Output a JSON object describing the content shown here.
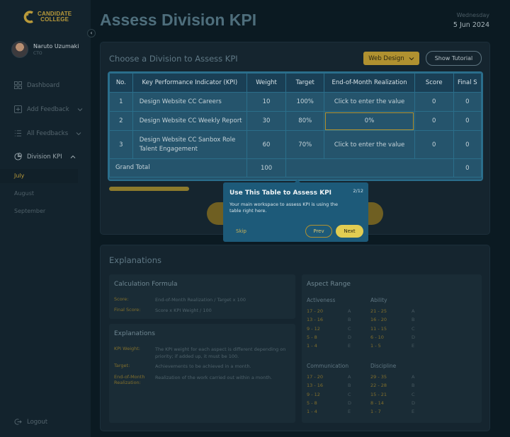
{
  "brand": {
    "line1": "CANDIDATE",
    "line2": "COLLEGE"
  },
  "user": {
    "name": "Naruto Uzumaki",
    "role": "CTO"
  },
  "sidebar": {
    "items": [
      {
        "label": "Dashboard"
      },
      {
        "label": "Add Feedback"
      },
      {
        "label": "All Feedbacks"
      },
      {
        "label": "Division KPI"
      }
    ],
    "sub_items": [
      {
        "label": "July"
      },
      {
        "label": "August"
      },
      {
        "label": "September"
      }
    ],
    "logout": "Logout"
  },
  "header": {
    "title": "Assess Division KPI",
    "weekday": "Wednesday",
    "date": "5 Jun 2024"
  },
  "assess": {
    "title": "Choose a Division to Assess KPI",
    "division": "Web Design",
    "tutorial_label": "Show Tutorial"
  },
  "table": {
    "headers": [
      "No.",
      "Key Performance Indicator (KPI)",
      "Weight",
      "Target",
      "End-of-Month Realization",
      "Score",
      "Final S"
    ],
    "rows": [
      {
        "no": "1",
        "kpi": "Design Website CC Careers",
        "weight": "10",
        "target": "100%",
        "realization": "Click to enter the value",
        "score": "0",
        "final": "0"
      },
      {
        "no": "2",
        "kpi": "Design Website CC Weekly Report",
        "weight": "30",
        "target": "80%",
        "realization": "0%",
        "score": "0",
        "final": "0"
      },
      {
        "no": "3",
        "kpi": "Design Website CC Sanbox Role Talent Engagement",
        "weight": "60",
        "target": "70%",
        "realization": "Click to enter the value",
        "score": "0",
        "final": "0"
      }
    ],
    "total": {
      "label": "Grand Total",
      "weight": "100",
      "final": "0"
    }
  },
  "tooltip": {
    "title": "Use This Table to Assess KPI",
    "step": "2/12",
    "body": "Your main workspace to assess KPI is using the table right here.",
    "skip": "Skip",
    "prev": "Prev",
    "next": "Next"
  },
  "explanations": {
    "title": "Explanations",
    "formula": {
      "title": "Calculation Formula",
      "items": [
        {
          "key": "Score:",
          "value": "End-of-Month Realization / Target x 100"
        },
        {
          "key": "Final Score:",
          "value": "Score x KPI Weight / 100"
        }
      ]
    },
    "terms": {
      "title": "Explanations",
      "items": [
        {
          "key": "KPI Weight:",
          "value": "The KPI weight for each aspect is different depending on priority; if added up, it must be 100."
        },
        {
          "key": "Target:",
          "value": "Achievements to be achieved in a month."
        },
        {
          "key": "End-of-Month Realization:",
          "value": "Realization of the work carried out within a month."
        }
      ]
    },
    "aspect": {
      "title": "Aspect Range",
      "groups": [
        {
          "name": "Activeness",
          "rows": [
            [
              "17 - 20",
              "A"
            ],
            [
              "13 - 16",
              "B"
            ],
            [
              "9 - 12",
              "C"
            ],
            [
              "5 - 8",
              "D"
            ],
            [
              "1 - 4",
              "E"
            ]
          ]
        },
        {
          "name": "Ability",
          "rows": [
            [
              "21 - 25",
              "A"
            ],
            [
              "16 - 20",
              "B"
            ],
            [
              "11 - 15",
              "C"
            ],
            [
              "6 - 10",
              "D"
            ],
            [
              "1 - 5",
              "E"
            ]
          ]
        },
        {
          "name": "Communication",
          "rows": [
            [
              "17 - 20",
              "A"
            ],
            [
              "13 - 16",
              "B"
            ],
            [
              "9 - 12",
              "C"
            ],
            [
              "5 - 8",
              "D"
            ],
            [
              "1 - 4",
              "E"
            ]
          ]
        },
        {
          "name": "Discipline",
          "rows": [
            [
              "29 - 35",
              "A"
            ],
            [
              "22 - 28",
              "B"
            ],
            [
              "15 - 21",
              "C"
            ],
            [
              "8 - 14",
              "D"
            ],
            [
              "1 - 7",
              "E"
            ]
          ]
        }
      ]
    }
  },
  "colors": {
    "accent": "#b09130",
    "table_bg": "#25546c",
    "tooltip_bg": "#1d5a79"
  }
}
